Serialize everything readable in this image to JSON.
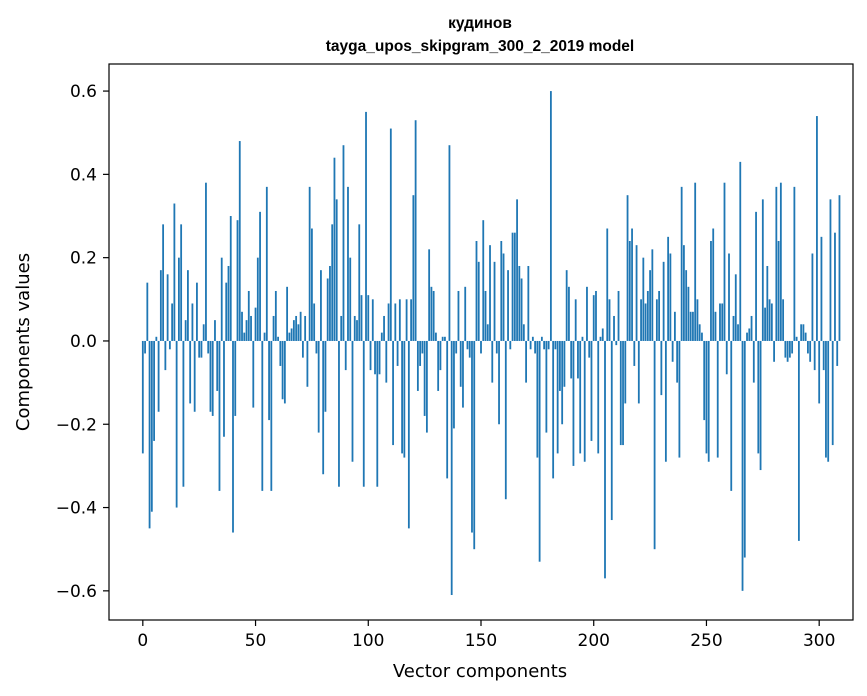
{
  "chart_data": {
    "type": "bar",
    "title": "кудинов",
    "subtitle": "tayga_upos_skipgram_300_2_2019 model",
    "xlabel": "Vector components",
    "ylabel": "Components values",
    "xlim": [
      -15,
      315
    ],
    "ylim": [
      -0.67,
      0.665
    ],
    "xticks": [
      0,
      50,
      100,
      150,
      200,
      250,
      300
    ],
    "yticks": [
      -0.6,
      -0.4,
      -0.2,
      0.0,
      0.2,
      0.4,
      0.6
    ],
    "xtick_labels": [
      "0",
      "50",
      "100",
      "150",
      "200",
      "250",
      "300"
    ],
    "ytick_labels": [
      "−0.6",
      "−0.4",
      "−0.2",
      "0.0",
      "0.2",
      "0.4",
      "0.6"
    ],
    "bar_color": "#1f77b4",
    "grid": false,
    "legend": "none",
    "values": [
      -0.27,
      -0.03,
      0.14,
      -0.45,
      -0.41,
      -0.24,
      0.01,
      -0.17,
      0.17,
      0.28,
      -0.07,
      0.16,
      -0.02,
      0.09,
      0.33,
      -0.4,
      0.2,
      0.28,
      -0.35,
      0.05,
      0.17,
      -0.15,
      0.09,
      -0.17,
      0.14,
      -0.04,
      -0.04,
      0.04,
      0.38,
      -0.03,
      -0.17,
      -0.18,
      0.05,
      -0.12,
      -0.36,
      0.2,
      -0.23,
      0.14,
      0.18,
      0.3,
      -0.46,
      -0.18,
      0.29,
      0.48,
      0.07,
      0.02,
      0.05,
      0.12,
      0.06,
      -0.16,
      0.08,
      0.2,
      0.31,
      -0.36,
      0.02,
      0.37,
      -0.19,
      -0.36,
      0.06,
      0.12,
      0.01,
      -0.06,
      -0.14,
      -0.15,
      0.13,
      0.02,
      0.03,
      0.05,
      0.06,
      0.04,
      0.07,
      -0.04,
      0.06,
      -0.11,
      0.37,
      0.27,
      0.09,
      -0.03,
      -0.22,
      0.17,
      -0.32,
      -0.17,
      0.15,
      0.18,
      0.28,
      0.44,
      0.34,
      -0.35,
      0.06,
      0.47,
      -0.07,
      0.37,
      0.2,
      -0.29,
      0.06,
      0.05,
      0.28,
      0.11,
      -0.35,
      0.55,
      0.11,
      -0.07,
      0.1,
      -0.08,
      -0.35,
      -0.08,
      0.02,
      0.06,
      -0.1,
      0.09,
      0.51,
      -0.25,
      0.09,
      -0.06,
      0.1,
      -0.27,
      -0.28,
      0.1,
      -0.45,
      0.1,
      0.35,
      0.53,
      -0.12,
      -0.06,
      -0.03,
      -0.18,
      -0.22,
      0.22,
      0.13,
      0.12,
      0.02,
      -0.12,
      -0.07,
      0.01,
      0.01,
      -0.33,
      0.47,
      -0.61,
      -0.21,
      -0.03,
      0.12,
      -0.11,
      -0.16,
      0.13,
      -0.02,
      -0.04,
      -0.46,
      -0.5,
      0.24,
      0.19,
      -0.03,
      0.29,
      0.12,
      0.04,
      0.23,
      -0.1,
      0.19,
      -0.03,
      -0.2,
      0.24,
      0.21,
      -0.38,
      0.17,
      -0.02,
      0.26,
      0.26,
      0.34,
      0.18,
      0.15,
      0.04,
      -0.1,
      0.18,
      -0.02,
      0.01,
      -0.03,
      -0.28,
      -0.53,
      0.01,
      -0.02,
      -0.22,
      -0.02,
      0.6,
      -0.33,
      -0.02,
      -0.27,
      -0.12,
      -0.2,
      -0.11,
      0.17,
      0.13,
      -0.09,
      -0.3,
      0.1,
      -0.09,
      -0.27,
      0.01,
      -0.29,
      0.13,
      -0.04,
      -0.24,
      0.11,
      0.12,
      -0.27,
      0.01,
      0.03,
      -0.57,
      0.27,
      0.1,
      -0.43,
      0.06,
      -0.01,
      0.12,
      -0.25,
      -0.25,
      -0.15,
      0.35,
      0.24,
      0.27,
      -0.06,
      0.23,
      -0.15,
      0.1,
      0.2,
      0.09,
      0.12,
      0.17,
      0.22,
      -0.5,
      0.1,
      0.12,
      -0.13,
      0.19,
      -0.29,
      0.25,
      0.21,
      -0.05,
      0.07,
      -0.1,
      -0.28,
      0.37,
      0.23,
      0.17,
      0.13,
      0.07,
      0.07,
      0.38,
      0.1,
      0.04,
      0.02,
      -0.19,
      -0.27,
      -0.29,
      0.24,
      0.27,
      0.07,
      -0.28,
      0.09,
      0.09,
      0.38,
      -0.08,
      0.21,
      -0.36,
      0.06,
      0.16,
      0.04,
      0.43,
      -0.6,
      -0.52,
      0.02,
      0.03,
      0.06,
      -0.1,
      0.31,
      -0.27,
      -0.31,
      0.34,
      0.08,
      0.18,
      0.1,
      0.09,
      -0.05,
      0.37,
      0.24,
      0.38,
      0.1,
      -0.04,
      -0.05,
      -0.04,
      -0.03,
      0.37,
      0.01,
      -0.48,
      0.04,
      0.04,
      0.02,
      -0.03,
      -0.05,
      0.21,
      -0.07,
      0.54,
      -0.15,
      0.25,
      -0.07,
      -0.28,
      -0.29,
      0.34,
      -0.25,
      0.26,
      -0.06,
      0.35
    ]
  }
}
